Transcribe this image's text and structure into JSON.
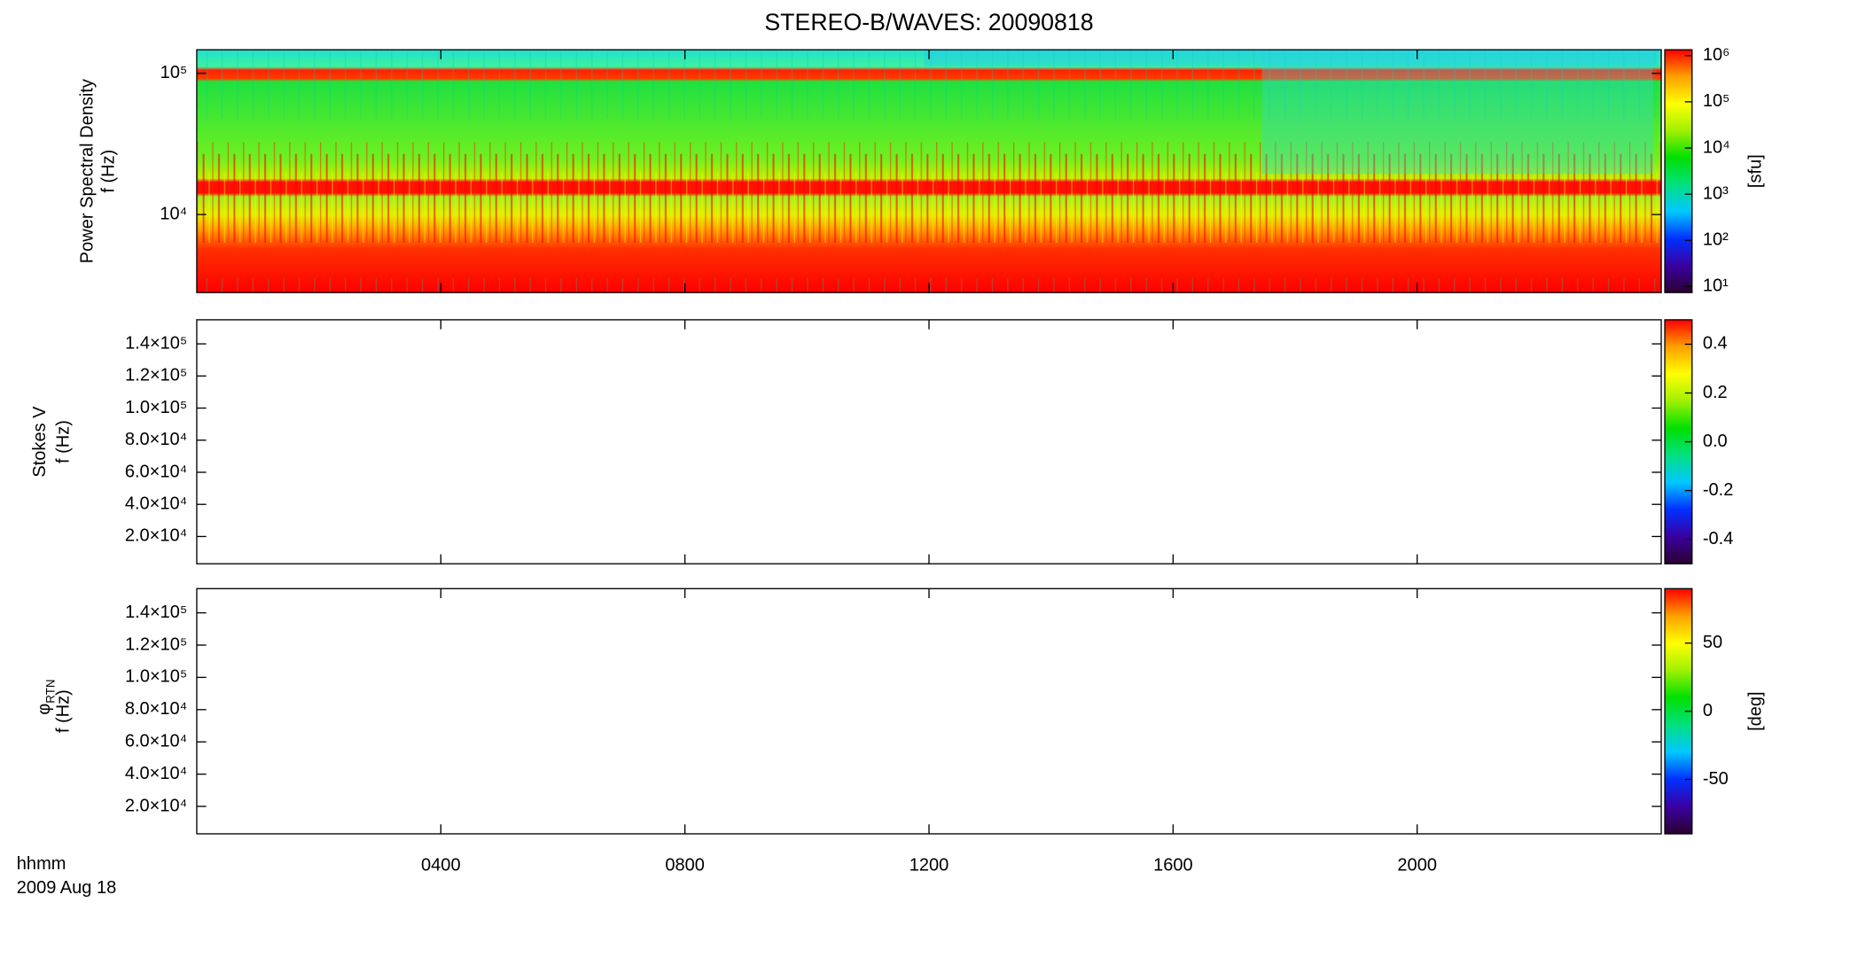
{
  "chart_data": {
    "type": "spectrogram",
    "title": "STEREO-B/WAVES: 20090818",
    "x_label": "hhmm",
    "date_label": "2009 Aug 18",
    "xlim": [
      0,
      24
    ],
    "xticks": [
      {
        "value": 4,
        "label": "0400"
      },
      {
        "value": 8,
        "label": "0800"
      },
      {
        "value": 12,
        "label": "1200"
      },
      {
        "value": 16,
        "label": "1600"
      },
      {
        "value": 20,
        "label": "2000"
      }
    ],
    "colormap": [
      "#2a0030",
      "#3a00a0",
      "#0030ff",
      "#00c8ff",
      "#00e080",
      "#00e000",
      "#a0f000",
      "#ffff00",
      "#ffa000",
      "#ff0000"
    ],
    "panels": [
      {
        "y_title": "Power Spectral Density",
        "y_label": "f (Hz)",
        "yscale": "log",
        "ylim": [
          2800,
          147000
        ],
        "yticks": [
          {
            "value": 100000,
            "label": "10⁵"
          },
          {
            "value": 10000,
            "label": "10⁴"
          }
        ],
        "colorbar": {
          "label": "[sfu]",
          "scale": "log",
          "lim": [
            7.4,
            1340000
          ],
          "ticks": [
            {
              "value": 1000000,
              "label": "10⁶"
            },
            {
              "value": 100000,
              "label": "10⁵"
            },
            {
              "value": 10000,
              "label": "10⁴"
            },
            {
              "value": 1000,
              "label": "10³"
            },
            {
              "value": 100,
              "label": "10²"
            },
            {
              "value": 10,
              "label": "10¹"
            }
          ]
        }
      },
      {
        "y_title": "Stokes V",
        "y_label": "f (Hz)",
        "yscale": "linear",
        "ylim": [
          3000,
          155000
        ],
        "yticks": [
          {
            "value": 140000,
            "label": "1.4×10⁵"
          },
          {
            "value": 120000,
            "label": "1.2×10⁵"
          },
          {
            "value": 100000,
            "label": "1.0×10⁵"
          },
          {
            "value": 80000,
            "label": "8.0×10⁴"
          },
          {
            "value": 60000,
            "label": "6.0×10⁴"
          },
          {
            "value": 40000,
            "label": "4.0×10⁴"
          },
          {
            "value": 20000,
            "label": "2.0×10⁴"
          }
        ],
        "colorbar": {
          "scale": "linear",
          "lim": [
            -0.5,
            0.5
          ],
          "ticks": [
            0.4,
            0.2,
            {
              "value": 0,
              "label": "0.0"
            },
            -0.2,
            -0.4
          ]
        }
      },
      {
        "y_title": {
          "symbol": "φ",
          "subscript": "RTN"
        },
        "y_label": "f (Hz)",
        "yscale": "linear",
        "ylim": [
          3000,
          155000
        ],
        "yticks": [
          {
            "value": 140000,
            "label": "1.4×10⁵"
          },
          {
            "value": 120000,
            "label": "1.2×10⁵"
          },
          {
            "value": 100000,
            "label": "1.0×10⁵"
          },
          {
            "value": 80000,
            "label": "8.0×10⁴"
          },
          {
            "value": 60000,
            "label": "6.0×10⁴"
          },
          {
            "value": 40000,
            "label": "4.0×10⁴"
          },
          {
            "value": 20000,
            "label": "2.0×10⁴"
          }
        ],
        "colorbar": {
          "label": "[deg]",
          "scale": "linear",
          "lim": [
            -90,
            90
          ],
          "ticks": [
            50,
            0,
            -50
          ]
        }
      }
    ]
  }
}
